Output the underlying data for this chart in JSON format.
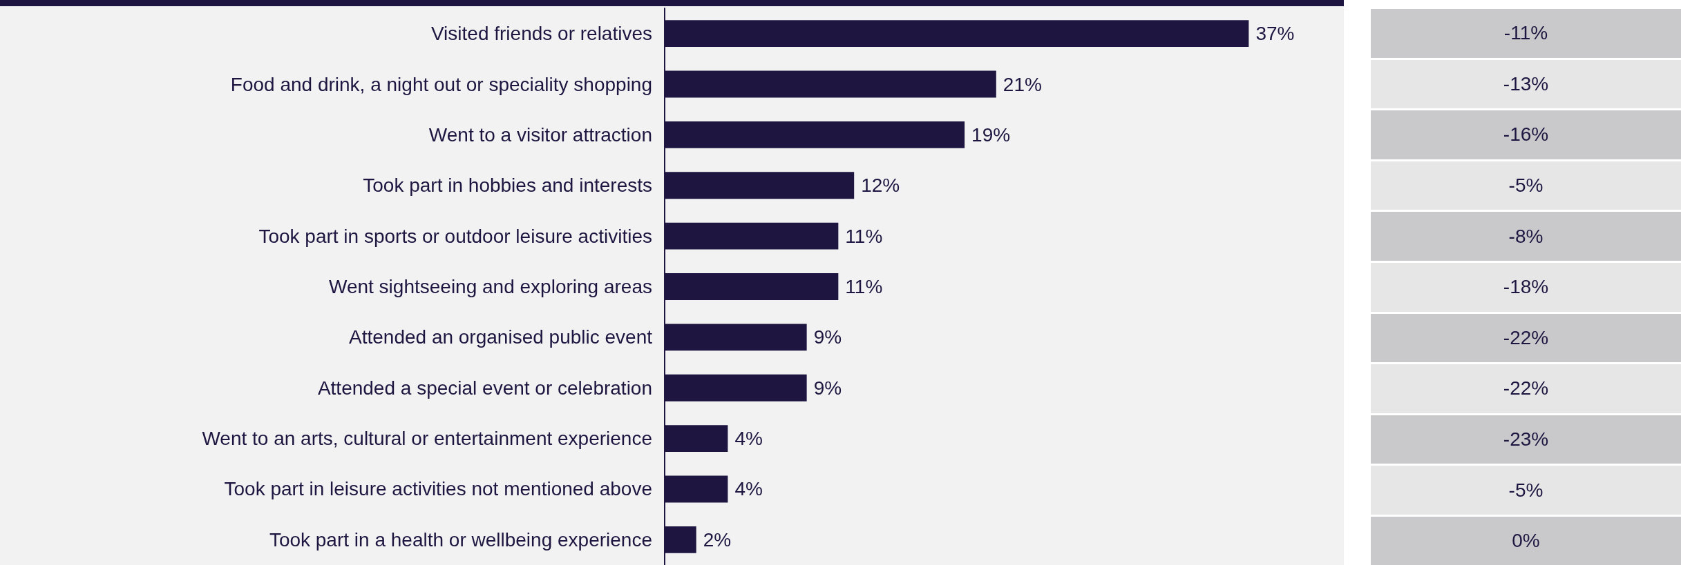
{
  "chart_data": [
    {
      "type": "bar",
      "orientation": "horizontal",
      "categories": [
        "Visited friends or relatives",
        "Food and drink, a night out or speciality shopping",
        "Went to a visitor attraction",
        "Took part in hobbies and interests",
        "Took part in sports or outdoor leisure activities",
        "Went sightseeing and exploring areas",
        "Attended an organised public event",
        "Attended a special event or celebration",
        "Went to an arts, cultural or entertainment experience",
        "Took part in leisure activities not mentioned above",
        "Took part in a health or wellbeing experience"
      ],
      "values": [
        37,
        21,
        19,
        12,
        11,
        11,
        9,
        9,
        4,
        4,
        2
      ],
      "value_labels": [
        "37%",
        "21%",
        "19%",
        "12%",
        "11%",
        "11%",
        "9%",
        "9%",
        "4%",
        "4%",
        "2%"
      ],
      "color": "#1e1640"
    },
    {
      "type": "other",
      "annotations": [
        "-11%",
        "-13%",
        "-16%",
        "-5%",
        "-8%",
        "-18%",
        "-22%",
        "-22%",
        "-23%",
        "-5%",
        "0%"
      ]
    }
  ]
}
